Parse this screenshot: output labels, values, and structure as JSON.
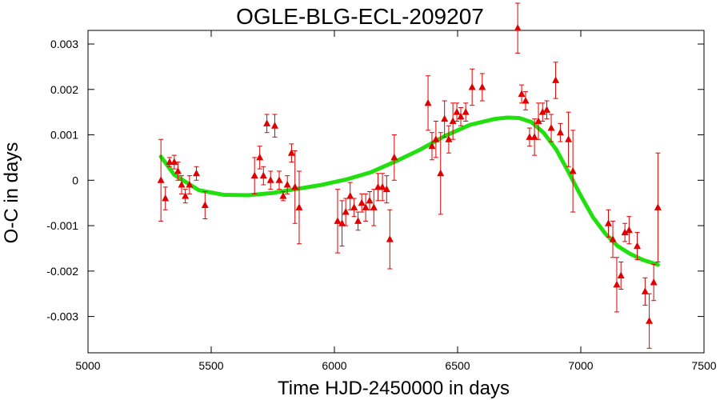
{
  "chart_data": {
    "type": "scatter",
    "title": "OGLE-BLG-ECL-209207",
    "xlabel": "Time HJD-2450000 in days",
    "ylabel": "O-C in days",
    "xlim": [
      5000,
      7500
    ],
    "ylim": [
      -0.0038,
      0.0033
    ],
    "xticks": [
      5000,
      5500,
      6000,
      6500,
      7000,
      7500
    ],
    "xtick_labels": [
      "5000",
      "5500",
      "6000",
      "6500",
      "7000",
      "7500"
    ],
    "yticks": [
      0.003,
      0.002,
      0.001,
      0,
      -0.001,
      -0.002,
      -0.003
    ],
    "ytick_labels": [
      "0.003",
      "0.002",
      "0.001",
      "0",
      "-0.001",
      "-0.002",
      "-0.003"
    ],
    "grid": false,
    "colors": {
      "points": "#e00000",
      "fit": "#22e010"
    },
    "series": [
      {
        "type": "scatter_with_errorbars",
        "points": [
          {
            "x": 5296,
            "y": 0.0,
            "err": 0.0009
          },
          {
            "x": 5314,
            "y": -0.0004,
            "err": 0.00025
          },
          {
            "x": 5331,
            "y": 0.0004,
            "err": 0.0001
          },
          {
            "x": 5350,
            "y": 0.0004,
            "err": 0.00015
          },
          {
            "x": 5365,
            "y": 0.0002,
            "err": 0.0002
          },
          {
            "x": 5380,
            "y": -0.0001,
            "err": 0.0002
          },
          {
            "x": 5395,
            "y": -0.00035,
            "err": 0.00015
          },
          {
            "x": 5412,
            "y": -0.0001,
            "err": 0.0002
          },
          {
            "x": 5440,
            "y": 0.00015,
            "err": 0.00015
          },
          {
            "x": 5475,
            "y": -0.00055,
            "err": 0.0003
          },
          {
            "x": 5676,
            "y": 0.0001,
            "err": 0.0004
          },
          {
            "x": 5697,
            "y": 0.0005,
            "err": 0.00025
          },
          {
            "x": 5712,
            "y": 0.0001,
            "err": 0.0002
          },
          {
            "x": 5726,
            "y": 0.00125,
            "err": 0.0002
          },
          {
            "x": 5741,
            "y": 0.0,
            "err": 0.0002
          },
          {
            "x": 5758,
            "y": 0.0012,
            "err": 0.00025
          },
          {
            "x": 5776,
            "y": 0.0,
            "err": 0.0002
          },
          {
            "x": 5792,
            "y": -0.00035,
            "err": 0.0001
          },
          {
            "x": 5809,
            "y": -0.0001,
            "err": 0.0002
          },
          {
            "x": 5826,
            "y": 0.0006,
            "err": 0.0002
          },
          {
            "x": 5840,
            "y": -0.00015,
            "err": 0.0008
          },
          {
            "x": 5857,
            "y": -0.0006,
            "err": 0.0008
          },
          {
            "x": 6013,
            "y": -0.0009,
            "err": 0.0007
          },
          {
            "x": 6031,
            "y": -0.00095,
            "err": 0.0005
          },
          {
            "x": 6046,
            "y": -0.0007,
            "err": 0.0003
          },
          {
            "x": 6064,
            "y": -0.00035,
            "err": 0.0003
          },
          {
            "x": 6080,
            "y": -0.0006,
            "err": 0.0002
          },
          {
            "x": 6096,
            "y": -0.0009,
            "err": 0.0002
          },
          {
            "x": 6111,
            "y": -0.0005,
            "err": 0.0002
          },
          {
            "x": 6127,
            "y": -0.0006,
            "err": 0.0003
          },
          {
            "x": 6143,
            "y": -0.00045,
            "err": 0.0002
          },
          {
            "x": 6160,
            "y": -0.0006,
            "err": 0.0004
          },
          {
            "x": 6177,
            "y": -0.00015,
            "err": 0.0003
          },
          {
            "x": 6195,
            "y": -0.00015,
            "err": 0.0003
          },
          {
            "x": 6212,
            "y": -0.0002,
            "err": 0.0003
          },
          {
            "x": 6225,
            "y": -0.0013,
            "err": 0.00065
          },
          {
            "x": 6243,
            "y": 0.0005,
            "err": 0.0005
          },
          {
            "x": 6380,
            "y": 0.0017,
            "err": 0.0006
          },
          {
            "x": 6396,
            "y": 0.00075,
            "err": 0.0003
          },
          {
            "x": 6412,
            "y": 0.0009,
            "err": 0.0004
          },
          {
            "x": 6431,
            "y": 0.00015,
            "err": 0.0009
          },
          {
            "x": 6447,
            "y": 0.00135,
            "err": 0.0004
          },
          {
            "x": 6464,
            "y": 0.0009,
            "err": 0.0003
          },
          {
            "x": 6481,
            "y": 0.0013,
            "err": 0.0004
          },
          {
            "x": 6497,
            "y": 0.0015,
            "err": 0.0002
          },
          {
            "x": 6513,
            "y": 0.0014,
            "err": 0.0002
          },
          {
            "x": 6533,
            "y": 0.0015,
            "err": 0.0002
          },
          {
            "x": 6559,
            "y": 0.00205,
            "err": 0.0004
          },
          {
            "x": 6600,
            "y": 0.00205,
            "err": 0.0003
          },
          {
            "x": 6744,
            "y": 0.00335,
            "err": 0.00055
          },
          {
            "x": 6760,
            "y": 0.0019,
            "err": 0.0002
          },
          {
            "x": 6776,
            "y": 0.00175,
            "err": 0.0002
          },
          {
            "x": 6792,
            "y": 0.00095,
            "err": 0.0002
          },
          {
            "x": 6812,
            "y": 0.00095,
            "err": 0.0004
          },
          {
            "x": 6828,
            "y": 0.0013,
            "err": 0.0004
          },
          {
            "x": 6845,
            "y": 0.0015,
            "err": 0.0002
          },
          {
            "x": 6862,
            "y": 0.00155,
            "err": 0.0002
          },
          {
            "x": 6880,
            "y": 0.00115,
            "err": 0.0003
          },
          {
            "x": 6898,
            "y": 0.0022,
            "err": 0.0004
          },
          {
            "x": 6917,
            "y": 0.00105,
            "err": 0.0002
          },
          {
            "x": 6950,
            "y": 0.0009,
            "err": 0.0006
          },
          {
            "x": 6968,
            "y": 0.0002,
            "err": 0.0009
          },
          {
            "x": 7112,
            "y": -0.00095,
            "err": 0.0003
          },
          {
            "x": 7130,
            "y": -0.0013,
            "err": 0.0004
          },
          {
            "x": 7146,
            "y": -0.0023,
            "err": 0.0006
          },
          {
            "x": 7163,
            "y": -0.0021,
            "err": 0.0003
          },
          {
            "x": 7179,
            "y": -0.00115,
            "err": 0.0002
          },
          {
            "x": 7196,
            "y": -0.0011,
            "err": 0.0003
          },
          {
            "x": 7229,
            "y": -0.00145,
            "err": 0.0003
          },
          {
            "x": 7261,
            "y": -0.00245,
            "err": 0.0003
          },
          {
            "x": 7278,
            "y": -0.0031,
            "err": 0.0006
          },
          {
            "x": 7296,
            "y": -0.00225,
            "err": 0.0004
          },
          {
            "x": 7313,
            "y": -0.0006,
            "err": 0.0012
          }
        ]
      },
      {
        "type": "line",
        "points": [
          {
            "x": 5296,
            "y": 0.00052
          },
          {
            "x": 5350,
            "y": 0.00012
          },
          {
            "x": 5450,
            "y": -0.00022
          },
          {
            "x": 5550,
            "y": -0.00032
          },
          {
            "x": 5650,
            "y": -0.00033
          },
          {
            "x": 5750,
            "y": -0.00028
          },
          {
            "x": 5850,
            "y": -0.00019
          },
          {
            "x": 5950,
            "y": -0.0001
          },
          {
            "x": 6050,
            "y": 2e-05
          },
          {
            "x": 6150,
            "y": 0.00018
          },
          {
            "x": 6250,
            "y": 0.00042
          },
          {
            "x": 6350,
            "y": 0.00068
          },
          {
            "x": 6450,
            "y": 0.00098
          },
          {
            "x": 6550,
            "y": 0.00122
          },
          {
            "x": 6650,
            "y": 0.00135
          },
          {
            "x": 6700,
            "y": 0.00138
          },
          {
            "x": 6750,
            "y": 0.00137
          },
          {
            "x": 6800,
            "y": 0.00128
          },
          {
            "x": 6850,
            "y": 0.00104
          },
          {
            "x": 6900,
            "y": 0.00068
          },
          {
            "x": 6950,
            "y": 0.00018
          },
          {
            "x": 7000,
            "y": -0.00034
          },
          {
            "x": 7050,
            "y": -0.00082
          },
          {
            "x": 7100,
            "y": -0.00118
          },
          {
            "x": 7150,
            "y": -0.00145
          },
          {
            "x": 7200,
            "y": -0.00162
          },
          {
            "x": 7250,
            "y": -0.00175
          },
          {
            "x": 7313,
            "y": -0.00186
          }
        ]
      }
    ]
  }
}
